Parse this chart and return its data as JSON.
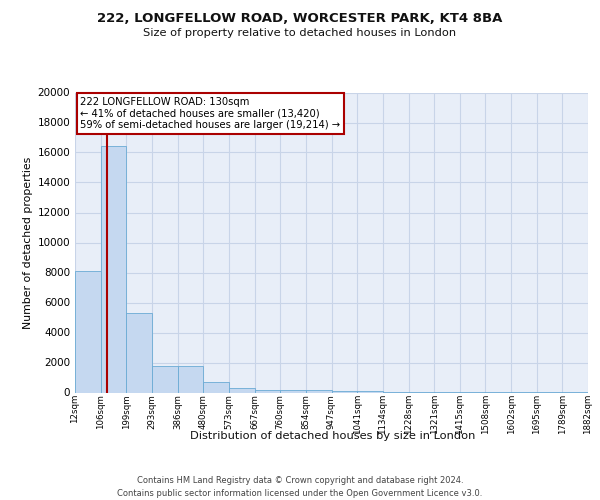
{
  "title1": "222, LONGFELLOW ROAD, WORCESTER PARK, KT4 8BA",
  "title2": "Size of property relative to detached houses in London",
  "xlabel": "Distribution of detached houses by size in London",
  "ylabel": "Number of detached properties",
  "bin_edges": [
    12,
    106,
    199,
    293,
    386,
    480,
    573,
    667,
    760,
    854,
    947,
    1041,
    1134,
    1228,
    1321,
    1415,
    1508,
    1602,
    1695,
    1789,
    1882
  ],
  "bar_heights": [
    8100,
    16400,
    5300,
    1750,
    1750,
    700,
    300,
    200,
    200,
    150,
    100,
    80,
    60,
    50,
    40,
    30,
    25,
    20,
    15,
    10
  ],
  "bar_color": "#c5d8f0",
  "bar_edge_color": "#6aaad4",
  "property_size": 130,
  "property_line_color": "#aa0000",
  "annotation_line1": "222 LONGFELLOW ROAD: 130sqm",
  "annotation_line2": "← 41% of detached houses are smaller (13,420)",
  "annotation_line3": "59% of semi-detached houses are larger (19,214) →",
  "annotation_box_facecolor": "#ffffff",
  "annotation_box_edgecolor": "#aa0000",
  "ylim": [
    0,
    20000
  ],
  "yticks": [
    0,
    2000,
    4000,
    6000,
    8000,
    10000,
    12000,
    14000,
    16000,
    18000,
    20000
  ],
  "background_color": "#e8eef8",
  "grid_color": "#c8d4e8",
  "footer_line1": "Contains HM Land Registry data © Crown copyright and database right 2024.",
  "footer_line2": "Contains public sector information licensed under the Open Government Licence v3.0."
}
